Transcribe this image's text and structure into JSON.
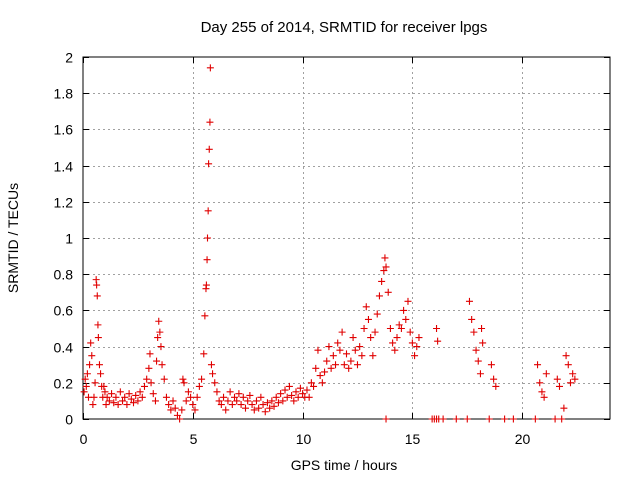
{
  "chart_data": {
    "type": "scatter",
    "title": "Day 255 of 2014, SRMTID for receiver lpgs",
    "xlabel": "GPS time / hours",
    "ylabel": "SRMTID / TECUs",
    "xlim": [
      0,
      24
    ],
    "ylim": [
      0,
      2
    ],
    "xticks": [
      0,
      5,
      10,
      15,
      20
    ],
    "xtick_labels": [
      "0",
      "5",
      "10",
      "15",
      "20"
    ],
    "yticks": [
      0,
      0.2,
      0.4,
      0.6,
      0.8,
      1,
      1.2,
      1.4,
      1.6,
      1.8,
      2
    ],
    "ytick_labels": [
      "0",
      "0.2",
      "0.4",
      "0.6",
      "0.8",
      "1",
      "1.2",
      "1.4",
      "1.6",
      "1.8",
      "2"
    ],
    "grid": true,
    "marker": "+",
    "color": "#e00000",
    "series": [
      {
        "name": "lpgs",
        "points": [
          [
            0.05,
            0.15
          ],
          [
            0.1,
            0.22
          ],
          [
            0.15,
            0.18
          ],
          [
            0.2,
            0.25
          ],
          [
            0.25,
            0.12
          ],
          [
            0.3,
            0.3
          ],
          [
            0.35,
            0.42
          ],
          [
            0.4,
            0.35
          ],
          [
            0.45,
            0.08
          ],
          [
            0.5,
            0.12
          ],
          [
            0.55,
            0.2
          ],
          [
            0.6,
            0.77
          ],
          [
            0.62,
            0.74
          ],
          [
            0.65,
            0.68
          ],
          [
            0.68,
            0.52
          ],
          [
            0.7,
            0.45
          ],
          [
            0.75,
            0.3
          ],
          [
            0.8,
            0.25
          ],
          [
            0.85,
            0.18
          ],
          [
            0.9,
            0.12
          ],
          [
            0.95,
            0.18
          ],
          [
            1.0,
            0.15
          ],
          [
            1.05,
            0.08
          ],
          [
            1.1,
            0.12
          ],
          [
            1.2,
            0.1
          ],
          [
            1.3,
            0.14
          ],
          [
            1.4,
            0.09
          ],
          [
            1.5,
            0.12
          ],
          [
            1.6,
            0.08
          ],
          [
            1.7,
            0.15
          ],
          [
            1.8,
            0.1
          ],
          [
            1.9,
            0.12
          ],
          [
            2.0,
            0.08
          ],
          [
            2.1,
            0.14
          ],
          [
            2.2,
            0.11
          ],
          [
            2.3,
            0.09
          ],
          [
            2.4,
            0.13
          ],
          [
            2.5,
            0.1
          ],
          [
            2.6,
            0.15
          ],
          [
            2.7,
            0.12
          ],
          [
            2.8,
            0.18
          ],
          [
            2.9,
            0.22
          ],
          [
            3.0,
            0.28
          ],
          [
            3.05,
            0.36
          ],
          [
            3.1,
            0.2
          ],
          [
            3.2,
            0.14
          ],
          [
            3.3,
            0.1
          ],
          [
            3.35,
            0.32
          ],
          [
            3.4,
            0.45
          ],
          [
            3.45,
            0.54
          ],
          [
            3.5,
            0.48
          ],
          [
            3.55,
            0.4
          ],
          [
            3.6,
            0.3
          ],
          [
            3.7,
            0.22
          ],
          [
            3.8,
            0.12
          ],
          [
            3.9,
            0.08
          ],
          [
            4.0,
            0.05
          ],
          [
            4.1,
            0.1
          ],
          [
            4.2,
            0.06
          ],
          [
            4.3,
            0.02
          ],
          [
            4.4,
            0.0
          ],
          [
            4.5,
            0.05
          ],
          [
            4.55,
            0.22
          ],
          [
            4.6,
            0.2
          ],
          [
            4.7,
            0.1
          ],
          [
            4.8,
            0.15
          ],
          [
            4.9,
            0.12
          ],
          [
            5.0,
            0.08
          ],
          [
            5.1,
            0.05
          ],
          [
            5.2,
            0.12
          ],
          [
            5.3,
            0.18
          ],
          [
            5.4,
            0.22
          ],
          [
            5.5,
            0.36
          ],
          [
            5.55,
            0.57
          ],
          [
            5.6,
            0.72
          ],
          [
            5.62,
            0.74
          ],
          [
            5.65,
            0.88
          ],
          [
            5.67,
            1.0
          ],
          [
            5.7,
            1.15
          ],
          [
            5.72,
            1.41
          ],
          [
            5.75,
            1.49
          ],
          [
            5.78,
            1.64
          ],
          [
            5.8,
            1.94
          ],
          [
            5.85,
            0.3
          ],
          [
            5.9,
            0.25
          ],
          [
            6.0,
            0.2
          ],
          [
            6.1,
            0.15
          ],
          [
            6.2,
            0.1
          ],
          [
            6.3,
            0.08
          ],
          [
            6.4,
            0.12
          ],
          [
            6.5,
            0.05
          ],
          [
            6.6,
            0.1
          ],
          [
            6.7,
            0.15
          ],
          [
            6.8,
            0.08
          ],
          [
            6.9,
            0.12
          ],
          [
            7.0,
            0.1
          ],
          [
            7.1,
            0.14
          ],
          [
            7.2,
            0.08
          ],
          [
            7.3,
            0.12
          ],
          [
            7.4,
            0.06
          ],
          [
            7.5,
            0.1
          ],
          [
            7.6,
            0.13
          ],
          [
            7.7,
            0.08
          ],
          [
            7.8,
            0.05
          ],
          [
            7.9,
            0.1
          ],
          [
            8.0,
            0.06
          ],
          [
            8.1,
            0.12
          ],
          [
            8.2,
            0.08
          ],
          [
            8.3,
            0.04
          ],
          [
            8.4,
            0.09
          ],
          [
            8.5,
            0.06
          ],
          [
            8.6,
            0.1
          ],
          [
            8.7,
            0.07
          ],
          [
            8.8,
            0.12
          ],
          [
            8.9,
            0.09
          ],
          [
            9.0,
            0.14
          ],
          [
            9.1,
            0.1
          ],
          [
            9.2,
            0.16
          ],
          [
            9.3,
            0.12
          ],
          [
            9.4,
            0.18
          ],
          [
            9.5,
            0.13
          ],
          [
            9.6,
            0.1
          ],
          [
            9.7,
            0.15
          ],
          [
            9.8,
            0.12
          ],
          [
            9.9,
            0.17
          ],
          [
            10.0,
            0.14
          ],
          [
            10.1,
            0.12
          ],
          [
            10.2,
            0.16
          ],
          [
            10.3,
            0.12
          ],
          [
            10.4,
            0.2
          ],
          [
            10.5,
            0.18
          ],
          [
            10.6,
            0.28
          ],
          [
            10.7,
            0.38
          ],
          [
            10.8,
            0.24
          ],
          [
            10.9,
            0.2
          ],
          [
            11.0,
            0.26
          ],
          [
            11.1,
            0.32
          ],
          [
            11.2,
            0.4
          ],
          [
            11.3,
            0.28
          ],
          [
            11.4,
            0.35
          ],
          [
            11.5,
            0.3
          ],
          [
            11.6,
            0.42
          ],
          [
            11.7,
            0.38
          ],
          [
            11.8,
            0.48
          ],
          [
            11.9,
            0.3
          ],
          [
            12.0,
            0.36
          ],
          [
            12.1,
            0.28
          ],
          [
            12.2,
            0.32
          ],
          [
            12.3,
            0.45
          ],
          [
            12.4,
            0.38
          ],
          [
            12.5,
            0.3
          ],
          [
            12.6,
            0.4
          ],
          [
            12.7,
            0.35
          ],
          [
            12.8,
            0.5
          ],
          [
            12.9,
            0.62
          ],
          [
            13.0,
            0.55
          ],
          [
            13.1,
            0.45
          ],
          [
            13.2,
            0.35
          ],
          [
            13.3,
            0.48
          ],
          [
            13.4,
            0.58
          ],
          [
            13.5,
            0.68
          ],
          [
            13.6,
            0.76
          ],
          [
            13.7,
            0.82
          ],
          [
            13.75,
            0.89
          ],
          [
            13.8,
            0.84
          ],
          [
            13.9,
            0.7
          ],
          [
            14.0,
            0.5
          ],
          [
            14.1,
            0.42
          ],
          [
            14.2,
            0.38
          ],
          [
            14.3,
            0.45
          ],
          [
            14.4,
            0.52
          ],
          [
            14.5,
            0.5
          ],
          [
            14.6,
            0.6
          ],
          [
            14.7,
            0.55
          ],
          [
            14.8,
            0.65
          ],
          [
            14.9,
            0.48
          ],
          [
            15.0,
            0.42
          ],
          [
            15.1,
            0.35
          ],
          [
            15.2,
            0.4
          ],
          [
            15.3,
            0.45
          ],
          [
            13.8,
            0.0
          ],
          [
            15.9,
            0.0
          ],
          [
            16.0,
            0.0
          ],
          [
            16.1,
            0.0
          ],
          [
            16.2,
            0.0
          ],
          [
            16.4,
            0.0
          ],
          [
            16.1,
            0.5
          ],
          [
            16.15,
            0.43
          ],
          [
            17.0,
            0.0
          ],
          [
            17.5,
            0.0
          ],
          [
            17.6,
            0.65
          ],
          [
            17.7,
            0.55
          ],
          [
            17.8,
            0.48
          ],
          [
            17.9,
            0.38
          ],
          [
            18.0,
            0.32
          ],
          [
            18.1,
            0.25
          ],
          [
            18.15,
            0.5
          ],
          [
            18.2,
            0.42
          ],
          [
            18.5,
            0.0
          ],
          [
            18.6,
            0.3
          ],
          [
            18.7,
            0.22
          ],
          [
            18.8,
            0.18
          ],
          [
            19.2,
            0.0
          ],
          [
            19.6,
            0.0
          ],
          [
            20.6,
            0.0
          ],
          [
            20.7,
            0.3
          ],
          [
            20.8,
            0.2
          ],
          [
            20.9,
            0.15
          ],
          [
            21.0,
            0.12
          ],
          [
            21.1,
            0.25
          ],
          [
            21.5,
            0.0
          ],
          [
            21.6,
            0.22
          ],
          [
            21.7,
            0.18
          ],
          [
            21.8,
            0.0
          ],
          [
            21.9,
            0.06
          ],
          [
            22.0,
            0.35
          ],
          [
            22.1,
            0.3
          ],
          [
            22.2,
            0.2
          ],
          [
            22.3,
            0.25
          ],
          [
            22.4,
            0.22
          ]
        ]
      }
    ]
  }
}
